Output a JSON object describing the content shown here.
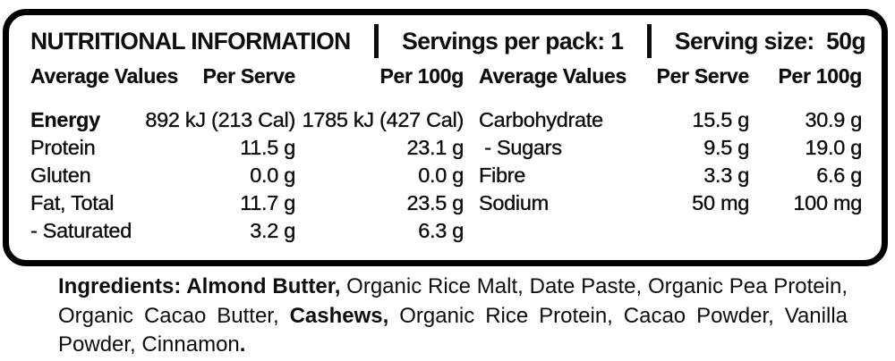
{
  "panel": {
    "title": "NUTRITIONAL INFORMATION",
    "servings_per_pack": "Servings per pack: 1",
    "serving_size": "Serving size:  50g"
  },
  "tables": [
    {
      "headers": [
        "Average Values",
        "Per Serve",
        "Per 100g"
      ],
      "rows": [
        {
          "label": "Energy",
          "bold": true,
          "per_serve": "892 kJ (213 Cal)",
          "per_100g": "1785 kJ (427 Cal)"
        },
        {
          "label": "Protein",
          "bold": false,
          "per_serve": "11.5 g",
          "per_100g": "23.1 g"
        },
        {
          "label": "Gluten",
          "bold": false,
          "per_serve": "0.0 g",
          "per_100g": "0.0 g"
        },
        {
          "label": "Fat, Total",
          "bold": false,
          "per_serve": "11.7 g",
          "per_100g": "23.5 g"
        },
        {
          "label": "- Saturated",
          "bold": false,
          "per_serve": "3.2 g",
          "per_100g": "6.3 g"
        }
      ]
    },
    {
      "headers": [
        "Average Values",
        "Per Serve",
        "Per 100g"
      ],
      "rows": [
        {
          "label": "Carbohydrate",
          "bold": false,
          "per_serve": "15.5 g",
          "per_100g": "30.9 g"
        },
        {
          "label": " - Sugars",
          "bold": false,
          "per_serve": "9.5 g",
          "per_100g": "19.0 g"
        },
        {
          "label": "Fibre",
          "bold": false,
          "per_serve": "3.3 g",
          "per_100g": "6.6 g"
        },
        {
          "label": "Sodium",
          "bold": false,
          "per_serve": "50 mg",
          "per_100g": "100 mg"
        }
      ]
    }
  ],
  "ingredients": {
    "segments": [
      {
        "text": "Ingredients: Almond Butter,",
        "bold": true
      },
      {
        "text": " Organic Rice Malt, Date Paste, Organic Pea Protein, Organic Cacao Butter, ",
        "bold": false
      },
      {
        "text": "Cashews,",
        "bold": true
      },
      {
        "text": " Organic Rice Protein, Cacao Powder, Vanilla Powder, Cinnamon",
        "bold": false
      },
      {
        "text": ".",
        "bold": true
      }
    ]
  },
  "colors": {
    "text": "#0d0d0d",
    "border": "#000000",
    "background": "#ffffff"
  }
}
